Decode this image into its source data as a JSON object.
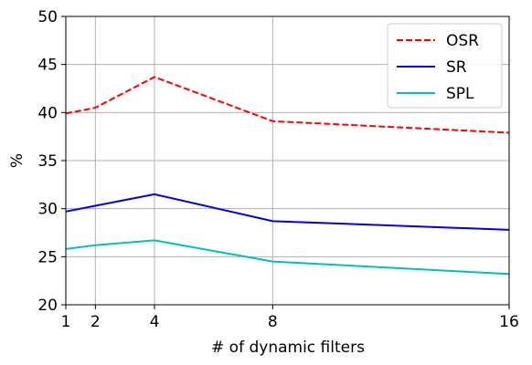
{
  "chart_data": {
    "type": "line",
    "xlabel": "# of dynamic filters",
    "ylabel": "%",
    "x": [
      1,
      2,
      4,
      8,
      16
    ],
    "series": [
      {
        "name": "OSR",
        "color": "#ff0000",
        "linestyle": "dashed",
        "values": [
          39.9,
          40.5,
          43.7,
          39.1,
          37.9
        ]
      },
      {
        "name": "SR",
        "color": "#0000ee",
        "linestyle": "solid",
        "values": [
          29.7,
          30.3,
          31.5,
          28.7,
          27.8
        ]
      },
      {
        "name": "SPL",
        "color": "#00bfbf",
        "linestyle": "solid",
        "values": [
          25.8,
          26.2,
          26.7,
          24.5,
          23.2
        ]
      }
    ],
    "xlim": [
      1,
      16
    ],
    "xticks": [
      1,
      2,
      4,
      8,
      16
    ],
    "ylim": [
      20,
      50
    ],
    "yticks": [
      20,
      25,
      30,
      35,
      40,
      45,
      50
    ],
    "grid": true,
    "legend": "upper right"
  }
}
